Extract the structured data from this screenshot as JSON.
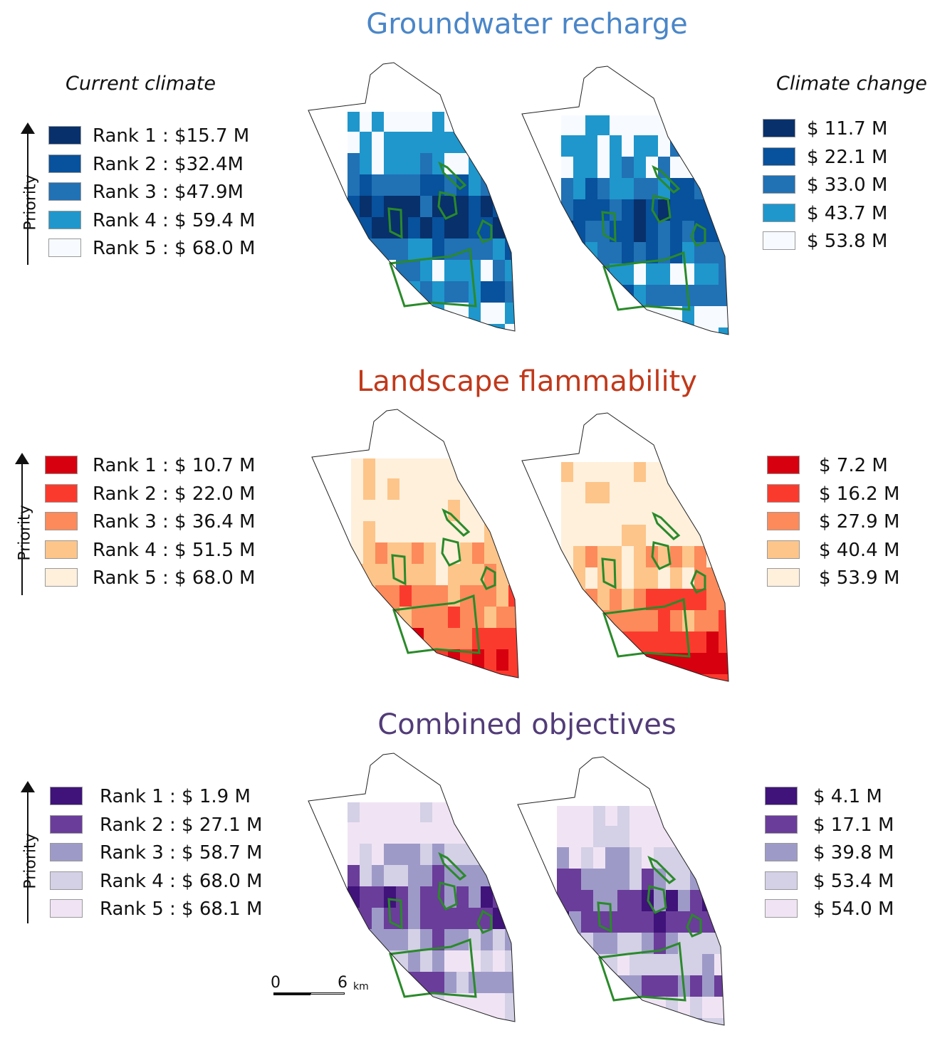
{
  "sections": [
    {
      "title": "Groundwater recharge",
      "title_color": "#4a86c8",
      "current_header": "Current climate",
      "change_header": "Climate change",
      "priority_label": "Priority",
      "colors": [
        "#08306b",
        "#08519c",
        "#2171b5",
        "#1f97cc",
        "#f7fbff"
      ],
      "current_legend": [
        "Rank 1 : $15.7 M",
        "Rank 2 : $32.4M",
        "Rank 3 : $47.9M",
        "Rank 4 : $ 59.4 M",
        "Rank 5 : $ 68.0 M"
      ],
      "change_legend": [
        "$ 11.7 M",
        "$ 22.1 M",
        "$ 33.0 M",
        "$ 43.7 M",
        "$ 53.8 M"
      ]
    },
    {
      "title": "Landscape flammability",
      "title_color": "#c0391b",
      "priority_label": "Priority",
      "colors": [
        "#d7000f",
        "#fb3a2e",
        "#fc8a5a",
        "#fdc58a",
        "#fff0dc"
      ],
      "current_legend": [
        "Rank 1 : $ 10.7 M",
        "Rank 2 : $ 22.0 M",
        "Rank 3 : $ 36.4 M",
        "Rank 4 : $ 51.5 M",
        "Rank 5 : $ 68.0 M"
      ],
      "change_legend": [
        "$ 7.2 M",
        "$ 16.2 M",
        "$ 27.9 M",
        "$ 40.4 M",
        "$ 53.9 M"
      ]
    },
    {
      "title": "Combined objectives",
      "title_color": "#523c78",
      "priority_label": "Priority",
      "colors": [
        "#3f137a",
        "#6a3d9a",
        "#9e9ac8",
        "#d4d0e6",
        "#f0e4f4"
      ],
      "current_legend": [
        "Rank 1 : $ 1.9 M",
        "Rank 2 : $ 27.1 M",
        "Rank 3 : $ 58.7 M",
        "Rank 4 : $ 68.0 M",
        "Rank 5 : $ 68.1 M"
      ],
      "change_legend": [
        "$ 4.1 M",
        "$ 17.1 M",
        "$ 39.8 M",
        "$ 53.4 M",
        "$ 54.0 M"
      ]
    }
  ],
  "boundary_color": "#2a8a2a",
  "scalebar": {
    "start": "0",
    "end": "6",
    "unit": "km"
  }
}
